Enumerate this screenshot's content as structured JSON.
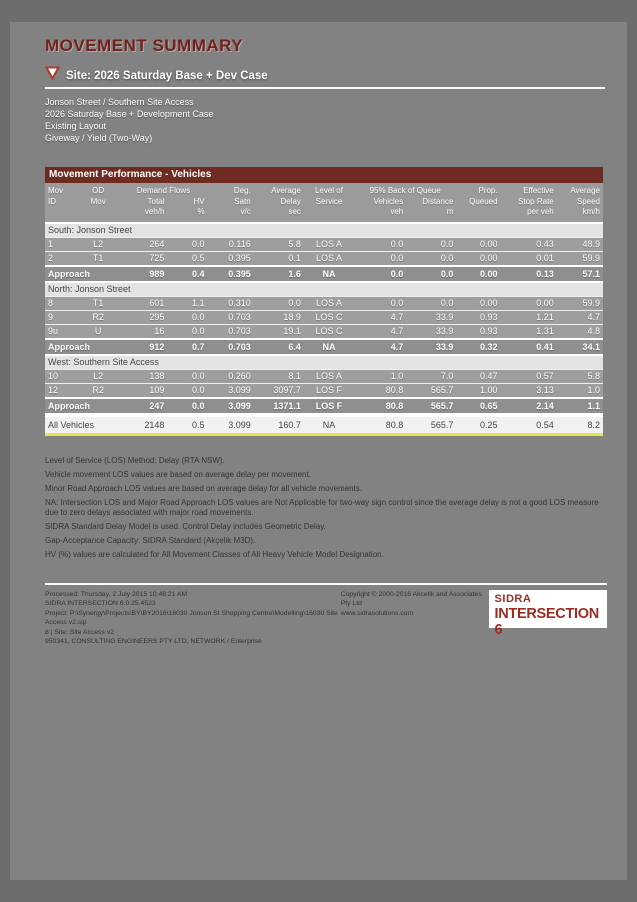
{
  "colors": {
    "page_gray": "#828282",
    "maroon_bar": "#6f2b20",
    "header_gray": "#9b9b9b",
    "row_gray": "#9e9e9e",
    "approach_gray": "#8f8f8f",
    "accent_yellow": "#e8e44a",
    "title_red": "#76201b",
    "logo_red": "#9c2b21"
  },
  "page": {
    "title": "MOVEMENT SUMMARY",
    "site_line": "Site: 2026 Saturday Base + Dev Case",
    "info_lines": [
      "Jonson Street / Southern Site Access",
      "2026 Saturday Base + Development Case",
      "Existing Layout",
      "Giveway / Yield (Two-Way)"
    ]
  },
  "table": {
    "title": "Movement Performance - Vehicles",
    "header_rows": [
      [
        {
          "t": "Mov"
        },
        {
          "t": "OD"
        },
        {
          "t": "Demand Flows",
          "span": 2
        },
        {
          "t": "Deg."
        },
        {
          "t": "Average"
        },
        {
          "t": "Level of"
        },
        {
          "t": "95% Back of Queue",
          "span": 2
        },
        {
          "t": "Prop."
        },
        {
          "t": "Effective"
        },
        {
          "t": "Average"
        }
      ],
      [
        {
          "t": "ID"
        },
        {
          "t": "Mov"
        },
        {
          "t": "Total"
        },
        {
          "t": "HV"
        },
        {
          "t": "Satn"
        },
        {
          "t": "Delay"
        },
        {
          "t": "Service"
        },
        {
          "t": "Vehicles"
        },
        {
          "t": "Distance"
        },
        {
          "t": "Queued"
        },
        {
          "t": "Stop Rate"
        },
        {
          "t": "Speed"
        }
      ],
      [
        {
          "t": ""
        },
        {
          "t": ""
        },
        {
          "t": "veh/h"
        },
        {
          "t": "%"
        },
        {
          "t": "v/c"
        },
        {
          "t": "sec"
        },
        {
          "t": ""
        },
        {
          "t": "veh"
        },
        {
          "t": "m"
        },
        {
          "t": ""
        },
        {
          "t": "per veh"
        },
        {
          "t": "km/h"
        }
      ]
    ],
    "sections": [
      {
        "label": "South: Jonson Street",
        "rows": [
          {
            "id": "1",
            "od": "L2",
            "cells": [
              "264",
              "0.0",
              "0.116",
              "5.8",
              "LOS A",
              "0.0",
              "0.0",
              "0.00",
              "0.43",
              "48.9"
            ]
          },
          {
            "id": "2",
            "od": "T1",
            "cells": [
              "725",
              "0.5",
              "0.395",
              "0.1",
              "LOS A",
              "0.0",
              "0.0",
              "0.00",
              "0.01",
              "59.9"
            ]
          }
        ],
        "approach": {
          "label": "Approach",
          "cells": [
            "989",
            "0.4",
            "0.395",
            "1.6",
            "NA",
            "0.0",
            "0.0",
            "0.00",
            "0.13",
            "57.1"
          ]
        }
      },
      {
        "label": "North: Jonson Street",
        "rows": [
          {
            "id": "8",
            "od": "T1",
            "cells": [
              "601",
              "1.1",
              "0.310",
              "0.0",
              "LOS A",
              "0.0",
              "0.0",
              "0.00",
              "0.00",
              "59.9"
            ]
          },
          {
            "id": "9",
            "od": "R2",
            "cells": [
              "295",
              "0.0",
              "0.703",
              "18.9",
              "LOS C",
              "4.7",
              "33.9",
              "0.93",
              "1.21",
              "4.7"
            ]
          },
          {
            "id": "9u",
            "od": "U",
            "cells": [
              "16",
              "0.0",
              "0.703",
              "19.1",
              "LOS C",
              "4.7",
              "33.9",
              "0.93",
              "1.31",
              "4.8"
            ]
          }
        ],
        "approach": {
          "label": "Approach",
          "cells": [
            "912",
            "0.7",
            "0.703",
            "6.4",
            "NA",
            "4.7",
            "33.9",
            "0.32",
            "0.41",
            "34.1"
          ]
        }
      },
      {
        "label": "West: Southern Site Access",
        "rows": [
          {
            "id": "10",
            "od": "L2",
            "cells": [
              "138",
              "0.0",
              "0.260",
              "8.1",
              "LOS A",
              "1.0",
              "7.0",
              "0.47",
              "0.57",
              "5.8"
            ]
          },
          {
            "id": "12",
            "od": "R2",
            "cells": [
              "109",
              "0.0",
              "3.099",
              "3097.7",
              "LOS F",
              "80.8",
              "565.7",
              "1.00",
              "3.13",
              "1.0"
            ]
          }
        ],
        "approach": {
          "label": "Approach",
          "cells": [
            "247",
            "0.0",
            "3.099",
            "1371.1",
            "LOS F",
            "80.8",
            "565.7",
            "0.65",
            "2.14",
            "1.1"
          ]
        }
      }
    ],
    "all_vehicles": {
      "label": "All Vehicles",
      "cells": [
        "2148",
        "0.5",
        "3.099",
        "160.7",
        "NA",
        "80.8",
        "565.7",
        "0.25",
        "0.54",
        "8.2"
      ]
    }
  },
  "footnotes": [
    "Level of Service (LOS) Method: Delay (RTA NSW).",
    "Vehicle movement LOS values are based on average delay per movement.",
    "Minor Road Approach LOS values are based on average delay for all vehicle movements.",
    "NA: Intersection LOS and Major Road Approach LOS values are Not Applicable for two-way sign control since the average delay is not a good LOS measure due to zero delays associated with major road movements.",
    "SIDRA Standard Delay Model is used. Control Delay includes Geometric Delay.",
    "Gap-Acceptance Capacity: SIDRA Standard (Akçelik M3D).",
    "HV (%) values are calculated for All Movement Classes of All Heavy Vehicle Model Designation."
  ],
  "footer": {
    "left_lines": [
      "Processed: Thursday, 2 July 2015 10:46:21 AM",
      "SIDRA INTERSECTION 6.0.25.4523",
      "Project: P:\\Synergy\\Projects\\BY\\BY2016\\16030 Jonson St Shopping Centre\\Modelling\\16030 Site Access v2.sip",
      "8 | Site: Site Access v2",
      "950341, CONSULTING ENGINEERS PTY LTD, NETWORK / Enterprise"
    ],
    "right_lines": [
      "Copyright © 2000-2016 Akcelik and Associates Pty Ltd",
      "www.sidrasolutions.com"
    ],
    "logo_line1": "SIDRA",
    "logo_line2": "INTERSECTION 6"
  }
}
